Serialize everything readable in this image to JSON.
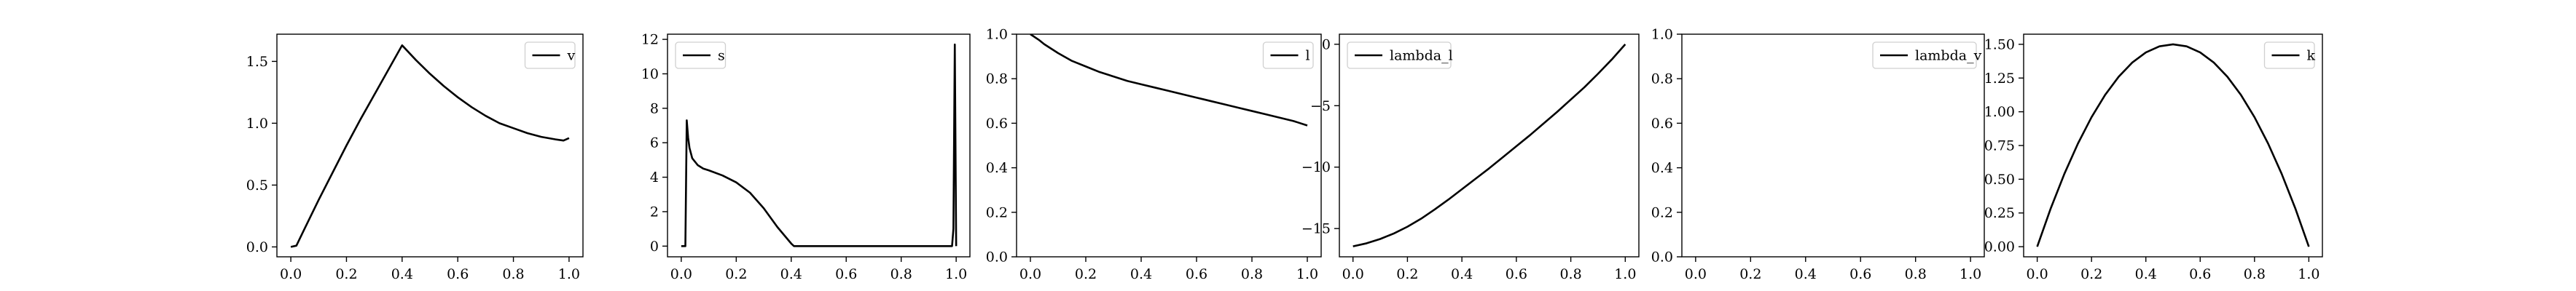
{
  "figure": {
    "panel_count": 6
  },
  "chart_data": [
    {
      "type": "line",
      "xlim": [
        -0.05,
        1.05
      ],
      "ylim": [
        -0.08,
        1.72
      ],
      "xticks": [
        0.0,
        0.2,
        0.4,
        0.6,
        0.8,
        1.0
      ],
      "xtick_labels": [
        "0.0",
        "0.2",
        "0.4",
        "0.6",
        "0.8",
        "1.0"
      ],
      "yticks": [
        0.0,
        0.5,
        1.0,
        1.5
      ],
      "ytick_labels": [
        "0.0",
        "0.5",
        "1.0",
        "1.5"
      ],
      "legend": {
        "placement": "top-right",
        "entries": [
          "v"
        ]
      },
      "grid": false,
      "series": [
        {
          "name": "v",
          "color": "#000000",
          "x": [
            0.0,
            0.02,
            0.05,
            0.1,
            0.15,
            0.2,
            0.25,
            0.3,
            0.35,
            0.4,
            0.45,
            0.5,
            0.55,
            0.6,
            0.65,
            0.7,
            0.75,
            0.8,
            0.85,
            0.9,
            0.95,
            0.98,
            1.0
          ],
          "y": [
            0.0,
            0.01,
            0.15,
            0.38,
            0.6,
            0.82,
            1.03,
            1.23,
            1.43,
            1.63,
            1.51,
            1.4,
            1.3,
            1.21,
            1.13,
            1.06,
            1.0,
            0.96,
            0.92,
            0.89,
            0.87,
            0.86,
            0.88
          ]
        }
      ]
    },
    {
      "type": "line",
      "xlim": [
        -0.05,
        1.05
      ],
      "ylim": [
        -0.62,
        12.3
      ],
      "xticks": [
        0.0,
        0.2,
        0.4,
        0.6,
        0.8,
        1.0
      ],
      "xtick_labels": [
        "0.0",
        "0.2",
        "0.4",
        "0.6",
        "0.8",
        "1.0"
      ],
      "yticks": [
        0,
        2,
        4,
        6,
        8,
        10,
        12
      ],
      "ytick_labels": [
        "0",
        "2",
        "4",
        "6",
        "8",
        "10",
        "12"
      ],
      "legend": {
        "placement": "top-left",
        "entries": [
          "s"
        ]
      },
      "grid": false,
      "series": [
        {
          "name": "s",
          "color": "#000000",
          "x": [
            0.0,
            0.015,
            0.02,
            0.025,
            0.03,
            0.04,
            0.06,
            0.08,
            0.1,
            0.15,
            0.2,
            0.25,
            0.3,
            0.35,
            0.4,
            0.41,
            0.5,
            0.6,
            0.7,
            0.8,
            0.9,
            0.985,
            0.99,
            0.995,
            1.0
          ],
          "y": [
            0.0,
            0.0,
            7.3,
            6.3,
            5.7,
            5.1,
            4.7,
            4.5,
            4.4,
            4.1,
            3.7,
            3.1,
            2.2,
            1.1,
            0.15,
            0.0,
            0.0,
            0.0,
            0.0,
            0.0,
            0.0,
            0.0,
            1.0,
            11.7,
            0.0
          ]
        }
      ]
    },
    {
      "type": "line",
      "xlim": [
        -0.05,
        1.05
      ],
      "ylim": [
        0.0,
        1.0
      ],
      "xticks": [
        0.0,
        0.2,
        0.4,
        0.6,
        0.8,
        1.0
      ],
      "xtick_labels": [
        "0.0",
        "0.2",
        "0.4",
        "0.6",
        "0.8",
        "1.0"
      ],
      "yticks": [
        0.0,
        0.2,
        0.4,
        0.6,
        0.8,
        1.0
      ],
      "ytick_labels": [
        "0.0",
        "0.2",
        "0.4",
        "0.6",
        "0.8",
        "1.0"
      ],
      "legend": {
        "placement": "top-right",
        "entries": [
          "l"
        ]
      },
      "grid": false,
      "series": [
        {
          "name": "l",
          "color": "#000000",
          "x": [
            0.0,
            0.03,
            0.05,
            0.1,
            0.15,
            0.2,
            0.25,
            0.3,
            0.35,
            0.4,
            0.45,
            0.5,
            0.55,
            0.6,
            0.65,
            0.7,
            0.75,
            0.8,
            0.85,
            0.9,
            0.95,
            1.0
          ],
          "y": [
            1.0,
            0.975,
            0.955,
            0.915,
            0.88,
            0.855,
            0.83,
            0.81,
            0.79,
            0.775,
            0.76,
            0.745,
            0.73,
            0.715,
            0.7,
            0.685,
            0.67,
            0.655,
            0.64,
            0.625,
            0.61,
            0.59
          ]
        }
      ]
    },
    {
      "type": "line",
      "xlim": [
        -0.05,
        1.05
      ],
      "ylim": [
        -17.3,
        0.82
      ],
      "xticks": [
        0.0,
        0.2,
        0.4,
        0.6,
        0.8,
        1.0
      ],
      "xtick_labels": [
        "0.0",
        "0.2",
        "0.4",
        "0.6",
        "0.8",
        "1.0"
      ],
      "yticks": [
        -15,
        -10,
        -5,
        0
      ],
      "ytick_labels": [
        "−15",
        "−10",
        "−5",
        "0"
      ],
      "legend": {
        "placement": "top-left",
        "entries": [
          "lambda_l"
        ]
      },
      "grid": false,
      "series": [
        {
          "name": "lambda_l",
          "color": "#000000",
          "x": [
            0.0,
            0.05,
            0.1,
            0.15,
            0.2,
            0.25,
            0.3,
            0.35,
            0.4,
            0.45,
            0.5,
            0.55,
            0.6,
            0.65,
            0.7,
            0.75,
            0.8,
            0.85,
            0.9,
            0.95,
            1.0
          ],
          "y": [
            -16.45,
            -16.2,
            -15.85,
            -15.4,
            -14.85,
            -14.2,
            -13.45,
            -12.65,
            -11.8,
            -10.95,
            -10.1,
            -9.2,
            -8.3,
            -7.4,
            -6.45,
            -5.5,
            -4.5,
            -3.5,
            -2.4,
            -1.25,
            0.0
          ]
        }
      ]
    },
    {
      "type": "line",
      "xlim": [
        -0.05,
        1.05
      ],
      "ylim": [
        0.0,
        1.0
      ],
      "xticks": [
        0.0,
        0.2,
        0.4,
        0.6,
        0.8,
        1.0
      ],
      "xtick_labels": [
        "0.0",
        "0.2",
        "0.4",
        "0.6",
        "0.8",
        "1.0"
      ],
      "yticks": [
        0.0,
        0.2,
        0.4,
        0.6,
        0.8,
        1.0
      ],
      "ytick_labels": [
        "0.0",
        "0.2",
        "0.4",
        "0.6",
        "0.8",
        "1.0"
      ],
      "legend": {
        "placement": "top-right",
        "entries": [
          "lambda_v"
        ]
      },
      "grid": false,
      "series": [
        {
          "name": "lambda_v",
          "color": "#000000",
          "x": [],
          "y": []
        }
      ]
    },
    {
      "type": "line",
      "xlim": [
        -0.05,
        1.05
      ],
      "ylim": [
        -0.075,
        1.575
      ],
      "xticks": [
        0.0,
        0.2,
        0.4,
        0.6,
        0.8,
        1.0
      ],
      "xtick_labels": [
        "0.0",
        "0.2",
        "0.4",
        "0.6",
        "0.8",
        "1.0"
      ],
      "yticks": [
        0.0,
        0.25,
        0.5,
        0.75,
        1.0,
        1.25,
        1.5
      ],
      "ytick_labels": [
        "0.00",
        "0.25",
        "0.50",
        "0.75",
        "1.00",
        "1.25",
        "1.50"
      ],
      "legend": {
        "placement": "top-right",
        "entries": [
          "k"
        ]
      },
      "grid": false,
      "series": [
        {
          "name": "k",
          "color": "#000000",
          "x": [
            0.0,
            0.05,
            0.1,
            0.15,
            0.2,
            0.25,
            0.3,
            0.35,
            0.4,
            0.45,
            0.5,
            0.55,
            0.6,
            0.65,
            0.7,
            0.75,
            0.8,
            0.85,
            0.9,
            0.95,
            1.0
          ],
          "y": [
            0.0,
            0.285,
            0.54,
            0.765,
            0.96,
            1.125,
            1.26,
            1.365,
            1.44,
            1.485,
            1.5,
            1.485,
            1.44,
            1.365,
            1.26,
            1.125,
            0.96,
            0.765,
            0.54,
            0.285,
            0.0
          ]
        }
      ]
    }
  ]
}
